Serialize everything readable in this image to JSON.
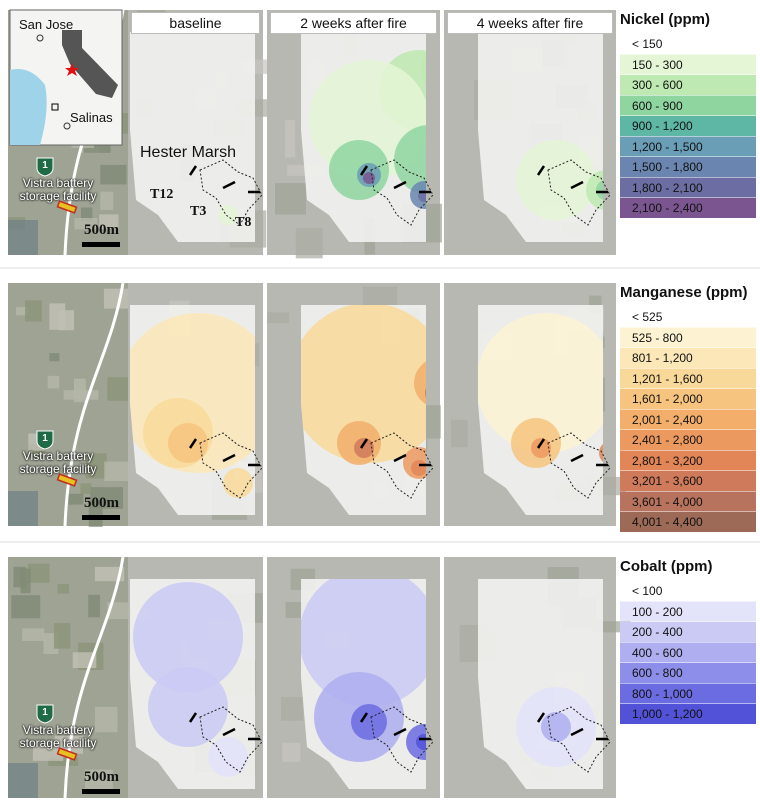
{
  "panel_titles": [
    "baseline",
    "2 weeks after fire",
    "4 weeks after fire"
  ],
  "inset_labels": [
    "San Jose",
    "Salinas"
  ],
  "site_labels": [
    "Hester Marsh",
    "T12",
    "T3",
    "T8"
  ],
  "rows": [
    {
      "facility_label": "Vistra battery storage facility",
      "highway_shield": "1",
      "scale_label": "500m",
      "legend": {
        "title": "Nickel (ppm)",
        "items": [
          {
            "label": "< 150",
            "color": "#ffffff"
          },
          {
            "label": "150 - 300",
            "color": "#e4f6d6"
          },
          {
            "label": "300 - 600",
            "color": "#bfe9b2"
          },
          {
            "label": "600 - 900",
            "color": "#8fd5a0"
          },
          {
            "label": "900 - 1,200",
            "color": "#5db7a4"
          },
          {
            "label": "1,200 - 1,500",
            "color": "#6a9db6"
          },
          {
            "label": "1,500 - 1,800",
            "color": "#6a86b0"
          },
          {
            "label": "1,800 - 2,100",
            "color": "#6c6ea3"
          },
          {
            "label": "2,100 - 2,400",
            "color": "#7a5590"
          }
        ]
      }
    },
    {
      "facility_label": "Vistra battery storage facility",
      "highway_shield": "1",
      "scale_label": "500m",
      "legend": {
        "title": "Manganese (ppm)",
        "items": [
          {
            "label": "< 525",
            "color": "#ffffff"
          },
          {
            "label": "525 - 800",
            "color": "#fdf3d3"
          },
          {
            "label": "801 - 1,200",
            "color": "#fbe7b7"
          },
          {
            "label": "1,201 - 1,600",
            "color": "#f9d99a"
          },
          {
            "label": "1,601 - 2,000",
            "color": "#f6c47e"
          },
          {
            "label": "2,001 - 2,400",
            "color": "#f2ae6a"
          },
          {
            "label": "2,401 - 2,800",
            "color": "#ec9960"
          },
          {
            "label": "2,801 - 3,200",
            "color": "#e28658"
          },
          {
            "label": "3,201 - 3,600",
            "color": "#cf7a5a"
          },
          {
            "label": "3,601 - 4,000",
            "color": "#b8735e"
          },
          {
            "label": "4,001 - 4,400",
            "color": "#9c6a56"
          }
        ]
      }
    },
    {
      "facility_label": "Vistra battery storage facility",
      "highway_shield": "1",
      "scale_label": "500m",
      "legend": {
        "title": "Cobalt (ppm)",
        "items": [
          {
            "label": "< 100",
            "color": "#ffffff"
          },
          {
            "label": "100 - 200",
            "color": "#e3e3fa"
          },
          {
            "label": "200 - 400",
            "color": "#cacaf4"
          },
          {
            "label": "400 - 600",
            "color": "#aeaef0"
          },
          {
            "label": "600 - 800",
            "color": "#8d8dea"
          },
          {
            "label": "800 - 1,000",
            "color": "#6c6ce2"
          },
          {
            "label": "1,000 - 1,200",
            "color": "#5252d9"
          }
        ]
      }
    }
  ]
}
